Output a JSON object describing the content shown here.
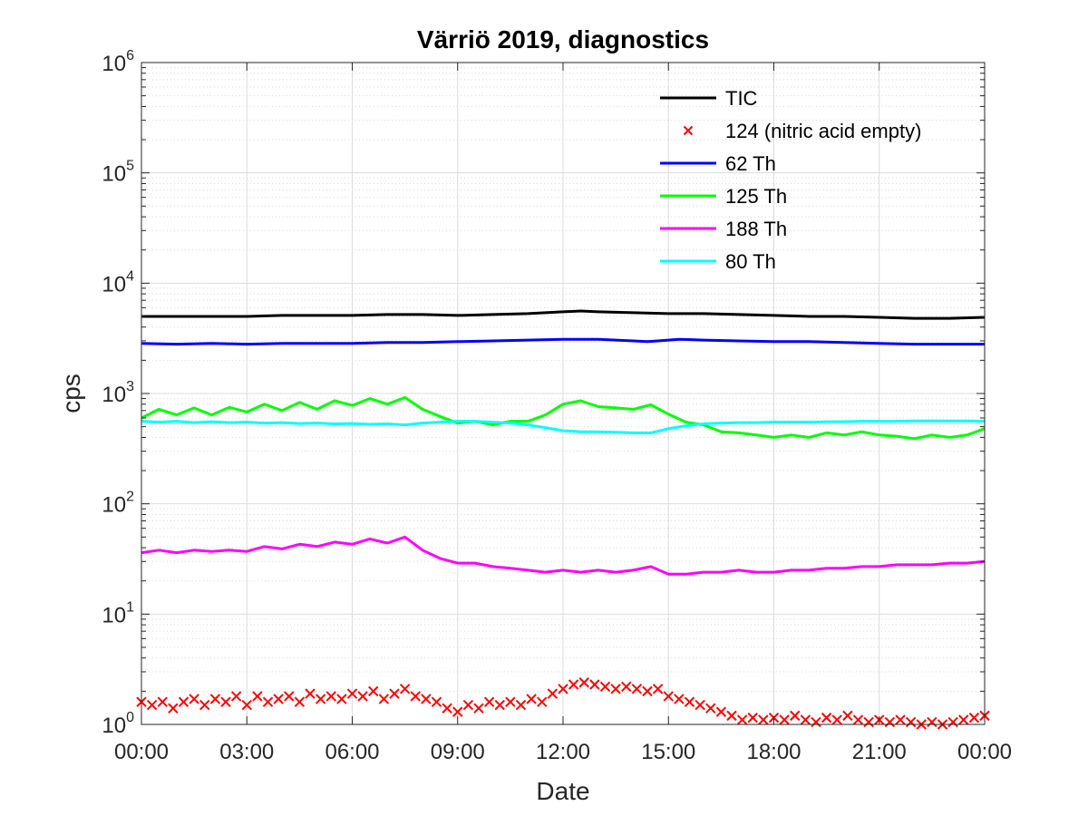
{
  "chart_data": {
    "type": "line",
    "title": "Värriö 2019, diagnostics",
    "xlabel": "Date",
    "ylabel": "cps",
    "xlim": [
      0,
      24
    ],
    "ylim": [
      1,
      1000000
    ],
    "yscale": "log",
    "grid": true,
    "minor_grid": true,
    "legend_position": "top-right",
    "x_ticks": [
      0,
      3,
      6,
      9,
      12,
      15,
      18,
      21,
      24
    ],
    "x_tick_labels": [
      "00:00",
      "03:00",
      "06:00",
      "09:00",
      "12:00",
      "15:00",
      "18:00",
      "21:00",
      "00:00"
    ],
    "y_ticks": [
      1,
      10,
      100,
      1000,
      10000,
      100000,
      1000000
    ],
    "y_tick_labels": [
      {
        "base": "10",
        "exp": "0"
      },
      {
        "base": "10",
        "exp": "1"
      },
      {
        "base": "10",
        "exp": "2"
      },
      {
        "base": "10",
        "exp": "3"
      },
      {
        "base": "10",
        "exp": "4"
      },
      {
        "base": "10",
        "exp": "5"
      },
      {
        "base": "10",
        "exp": "6"
      }
    ],
    "series": [
      {
        "name": "TIC",
        "color": "#000000",
        "style": "line",
        "x": [
          0,
          1,
          2,
          3,
          4,
          5,
          6,
          7,
          8,
          9,
          10,
          11,
          12,
          12.5,
          13,
          14,
          15,
          16,
          17,
          18,
          19,
          20,
          21,
          22,
          23,
          24
        ],
        "y": [
          5000,
          5000,
          5000,
          5000,
          5100,
          5100,
          5100,
          5200,
          5200,
          5100,
          5200,
          5300,
          5500,
          5600,
          5500,
          5400,
          5300,
          5300,
          5200,
          5100,
          5000,
          5000,
          4900,
          4800,
          4800,
          4900
        ]
      },
      {
        "name": "124 (nitric acid empty)",
        "color": "#ff0000",
        "style": "marker-x",
        "x": [
          0,
          0.3,
          0.6,
          0.9,
          1.2,
          1.5,
          1.8,
          2.1,
          2.4,
          2.7,
          3.0,
          3.3,
          3.6,
          3.9,
          4.2,
          4.5,
          4.8,
          5.1,
          5.4,
          5.7,
          6.0,
          6.3,
          6.6,
          6.9,
          7.2,
          7.5,
          7.8,
          8.1,
          8.4,
          8.7,
          9.0,
          9.3,
          9.6,
          9.9,
          10.2,
          10.5,
          10.8,
          11.1,
          11.4,
          11.7,
          12.0,
          12.3,
          12.6,
          12.9,
          13.2,
          13.5,
          13.8,
          14.1,
          14.4,
          14.7,
          15.0,
          15.3,
          15.6,
          15.9,
          16.2,
          16.5,
          16.8,
          17.1,
          17.4,
          17.7,
          18.0,
          18.3,
          18.6,
          18.9,
          19.2,
          19.5,
          19.8,
          20.1,
          20.4,
          20.7,
          21.0,
          21.3,
          21.6,
          21.9,
          22.2,
          22.5,
          22.8,
          23.1,
          23.4,
          23.7,
          24.0
        ],
        "y": [
          1.6,
          1.5,
          1.6,
          1.4,
          1.6,
          1.7,
          1.5,
          1.7,
          1.6,
          1.8,
          1.5,
          1.8,
          1.6,
          1.7,
          1.8,
          1.6,
          1.9,
          1.7,
          1.8,
          1.7,
          1.9,
          1.8,
          2.0,
          1.7,
          1.9,
          2.1,
          1.8,
          1.7,
          1.6,
          1.4,
          1.3,
          1.5,
          1.4,
          1.6,
          1.5,
          1.6,
          1.5,
          1.7,
          1.6,
          1.9,
          2.1,
          2.3,
          2.4,
          2.3,
          2.2,
          2.1,
          2.2,
          2.1,
          2.0,
          2.1,
          1.8,
          1.7,
          1.6,
          1.5,
          1.4,
          1.3,
          1.2,
          1.1,
          1.15,
          1.1,
          1.15,
          1.1,
          1.2,
          1.1,
          1.05,
          1.15,
          1.1,
          1.2,
          1.1,
          1.05,
          1.1,
          1.05,
          1.1,
          1.05,
          1.0,
          1.05,
          1.0,
          1.05,
          1.1,
          1.15,
          1.2
        ]
      },
      {
        "name": "62 Th",
        "color": "#0000ff",
        "style": "line",
        "x": [
          0,
          1,
          2,
          3,
          4,
          5,
          6,
          7,
          8,
          9,
          10,
          11,
          12,
          13,
          14,
          14.4,
          14.7,
          15,
          15.3,
          16,
          17,
          18,
          19,
          20,
          21,
          22,
          23,
          24
        ],
        "y": [
          2850,
          2800,
          2850,
          2800,
          2850,
          2850,
          2850,
          2900,
          2900,
          2950,
          3000,
          3050,
          3100,
          3100,
          3000,
          2950,
          3000,
          3050,
          3100,
          3050,
          3000,
          2950,
          2950,
          2900,
          2850,
          2800,
          2800,
          2800
        ]
      },
      {
        "name": "125 Th",
        "color": "#00ff00",
        "style": "line",
        "x": [
          0,
          0.5,
          1,
          1.5,
          2,
          2.5,
          3,
          3.5,
          4,
          4.5,
          5,
          5.5,
          6,
          6.5,
          7,
          7.5,
          8,
          8.5,
          9,
          9.5,
          10,
          10.5,
          11,
          11.5,
          12,
          12.5,
          13,
          13.5,
          14,
          14.5,
          15,
          15.5,
          16,
          16.5,
          17,
          17.5,
          18,
          18.5,
          19,
          19.5,
          20,
          20.5,
          21,
          21.5,
          22,
          22.5,
          23,
          23.5,
          24
        ],
        "y": [
          600,
          720,
          640,
          740,
          640,
          750,
          680,
          800,
          700,
          830,
          720,
          860,
          780,
          900,
          800,
          920,
          720,
          620,
          540,
          560,
          520,
          560,
          560,
          640,
          800,
          860,
          760,
          740,
          720,
          790,
          650,
          550,
          520,
          450,
          440,
          420,
          400,
          420,
          400,
          440,
          420,
          450,
          420,
          410,
          390,
          420,
          400,
          420,
          480
        ]
      },
      {
        "name": "188 Th",
        "color": "#ff00ff",
        "style": "line",
        "x": [
          0,
          0.5,
          1,
          1.5,
          2,
          2.5,
          3,
          3.5,
          4,
          4.5,
          5,
          5.5,
          6,
          6.5,
          7,
          7.5,
          8,
          8.5,
          9,
          9.5,
          10,
          10.5,
          11,
          11.5,
          12,
          12.5,
          13,
          13.5,
          14,
          14.5,
          15,
          15.5,
          16,
          16.5,
          17,
          17.5,
          18,
          18.5,
          19,
          19.5,
          20,
          20.5,
          21,
          21.5,
          22,
          22.5,
          23,
          23.5,
          24
        ],
        "y": [
          36,
          38,
          36,
          38,
          37,
          38,
          37,
          41,
          39,
          43,
          41,
          45,
          43,
          48,
          44,
          50,
          38,
          32,
          29,
          29,
          27,
          26,
          25,
          24,
          25,
          24,
          25,
          24,
          25,
          27,
          23,
          23,
          24,
          24,
          25,
          24,
          24,
          25,
          25,
          26,
          26,
          27,
          27,
          28,
          28,
          28,
          29,
          29,
          30
        ]
      },
      {
        "name": "80 Th",
        "color": "#00ffff",
        "style": "line",
        "x": [
          0,
          0.5,
          1,
          1.5,
          2,
          2.5,
          3,
          3.5,
          4,
          4.5,
          5,
          5.5,
          6,
          6.5,
          7,
          7.5,
          8,
          8.5,
          9,
          9.5,
          10,
          10.5,
          11,
          11.5,
          12,
          12.5,
          13,
          13.5,
          14,
          14.5,
          15,
          15.5,
          16,
          16.5,
          17,
          17.5,
          18,
          18.5,
          19,
          19.5,
          20,
          20.5,
          21,
          21.5,
          22,
          22.5,
          23,
          23.5,
          24
        ],
        "y": [
          560,
          550,
          560,
          545,
          555,
          545,
          550,
          540,
          545,
          535,
          540,
          530,
          535,
          525,
          530,
          520,
          540,
          550,
          560,
          560,
          550,
          540,
          520,
          490,
          460,
          450,
          450,
          445,
          440,
          440,
          480,
          510,
          530,
          540,
          545,
          545,
          550,
          550,
          550,
          555,
          555,
          560,
          560,
          560,
          565,
          565,
          565,
          565,
          560
        ]
      }
    ]
  }
}
